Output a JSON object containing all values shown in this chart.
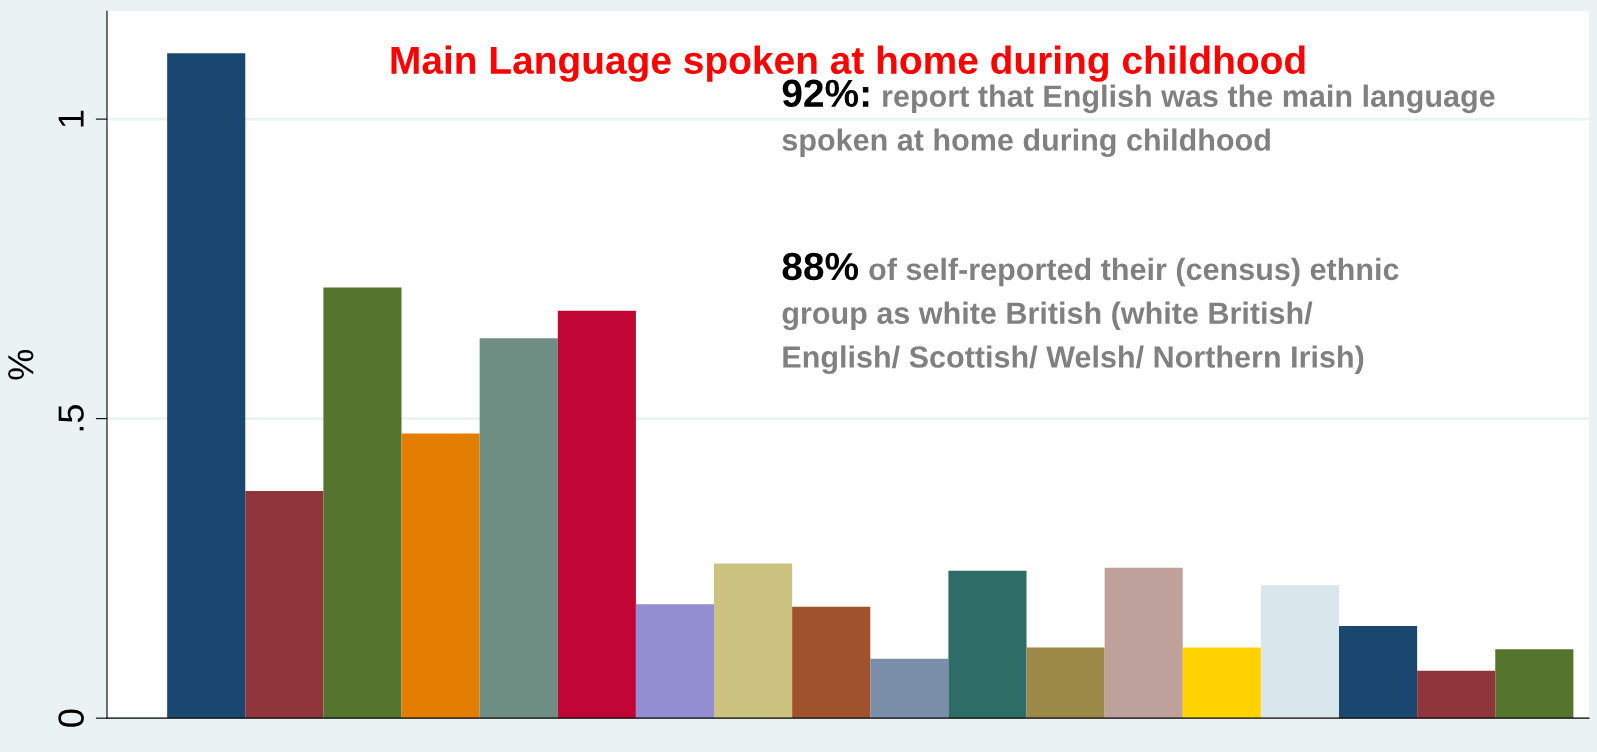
{
  "chart_data": {
    "type": "bar",
    "title": "Main Language spoken at home during childhood",
    "ylabel": "%",
    "categories": [
      null,
      null,
      null,
      null,
      null,
      null,
      null,
      null,
      null,
      null,
      null,
      null,
      null,
      null,
      null,
      null,
      null,
      null
    ],
    "values": [
      1.11,
      0.379,
      0.719,
      0.475,
      0.634,
      0.68,
      0.19,
      0.258,
      0.186,
      0.099,
      0.246,
      0.118,
      0.251,
      0.118,
      0.222,
      0.154,
      0.079,
      0.115
    ],
    "colors": [
      "#1a476f",
      "#90353b",
      "#55752f",
      "#e37e00",
      "#6e8e84",
      "#c10534",
      "#938dd2",
      "#cac27e",
      "#a0522d",
      "#7a8eaa",
      "#2d6d66",
      "#9c8847",
      "#bfa19c",
      "#ffd200",
      "#d9e6eb",
      "#1a476f",
      "#90353b",
      "#55752f"
    ],
    "ylim": [
      0,
      1.18
    ],
    "yticks": [
      0,
      {
        "value": 0.5,
        "label": ".5"
      },
      1
    ],
    "grid": "y",
    "tick_labels": "y",
    "annotations": [
      "92%:",
      "report that English was the main language\nspoken at home during childhood",
      "88%",
      "of self-reported their (census) ethnic\ngroup as white British (white British/\nEnglish/ Scottish/ Welsh/ Northern Irish)"
    ]
  }
}
